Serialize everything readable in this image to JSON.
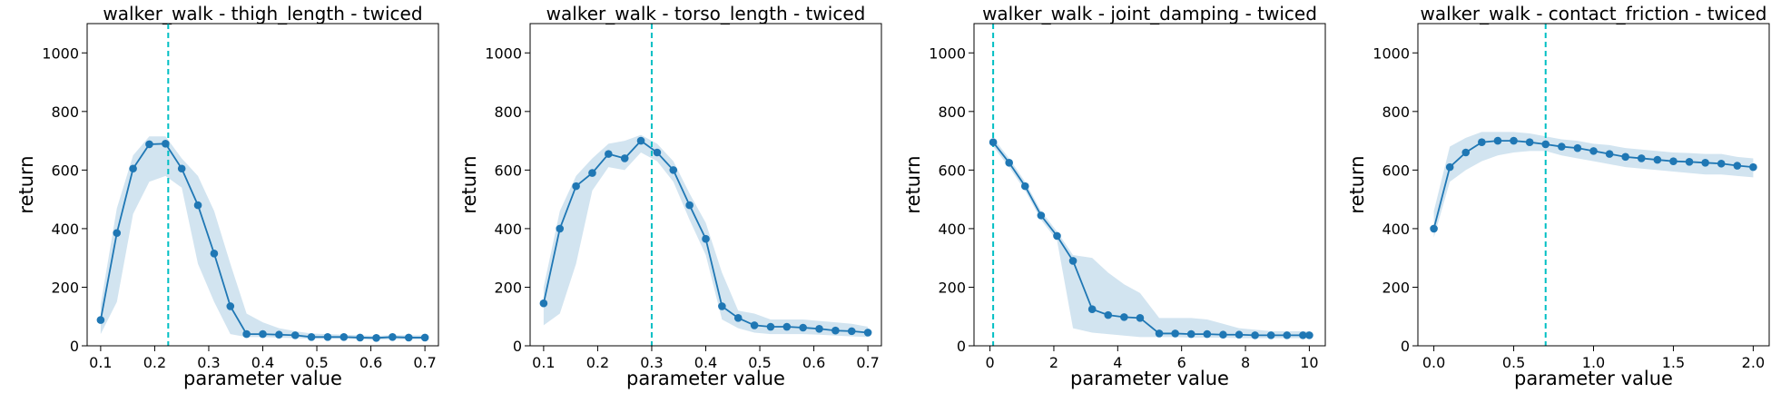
{
  "colors": {
    "line": "#1f77b4",
    "band": "#1f77b4",
    "marker_line": "#00bfc4",
    "axis": "#000000"
  },
  "chart_data": [
    {
      "type": "line",
      "title": "walker_walk - thigh_length - twiced",
      "xlabel": "parameter value",
      "ylabel": "return",
      "xlim": [
        0.075,
        0.725
      ],
      "ylim": [
        0,
        1100
      ],
      "xticks": [
        0.1,
        0.2,
        0.3,
        0.4,
        0.5,
        0.6,
        0.7
      ],
      "xtick_labels": [
        "0.1",
        "0.2",
        "0.3",
        "0.4",
        "0.5",
        "0.6",
        "0.7"
      ],
      "yticks": [
        0,
        200,
        400,
        600,
        800,
        1000
      ],
      "ytick_labels": [
        "0",
        "200",
        "400",
        "600",
        "800",
        "1000"
      ],
      "marker_x": 0.225,
      "x": [
        0.1,
        0.13,
        0.16,
        0.19,
        0.22,
        0.25,
        0.28,
        0.31,
        0.34,
        0.37,
        0.4,
        0.43,
        0.46,
        0.49,
        0.52,
        0.55,
        0.58,
        0.61,
        0.64,
        0.67,
        0.7
      ],
      "y": [
        88,
        385,
        605,
        688,
        690,
        605,
        480,
        315,
        135,
        40,
        40,
        38,
        36,
        30,
        30,
        30,
        28,
        27,
        30,
        28,
        28
      ],
      "lower": [
        40,
        150,
        450,
        560,
        580,
        540,
        280,
        150,
        40,
        30,
        30,
        28,
        26,
        24,
        24,
        24,
        22,
        20,
        22,
        22,
        22
      ],
      "upper": [
        140,
        470,
        650,
        715,
        715,
        640,
        580,
        460,
        280,
        110,
        80,
        60,
        50,
        42,
        40,
        38,
        36,
        34,
        36,
        36,
        36
      ]
    },
    {
      "type": "line",
      "title": "walker_walk - torso_length - twiced",
      "xlabel": "parameter value",
      "ylabel": "return",
      "xlim": [
        0.075,
        0.725
      ],
      "ylim": [
        0,
        1100
      ],
      "xticks": [
        0.1,
        0.2,
        0.3,
        0.4,
        0.5,
        0.6,
        0.7
      ],
      "xtick_labels": [
        "0.1",
        "0.2",
        "0.3",
        "0.4",
        "0.5",
        "0.6",
        "0.7"
      ],
      "yticks": [
        0,
        200,
        400,
        600,
        800,
        1000
      ],
      "ytick_labels": [
        "0",
        "200",
        "400",
        "600",
        "800",
        "1000"
      ],
      "marker_x": 0.3,
      "x": [
        0.1,
        0.13,
        0.16,
        0.19,
        0.22,
        0.25,
        0.28,
        0.31,
        0.34,
        0.37,
        0.4,
        0.43,
        0.46,
        0.49,
        0.52,
        0.55,
        0.58,
        0.61,
        0.64,
        0.67,
        0.7
      ],
      "y": [
        145,
        400,
        545,
        590,
        655,
        640,
        700,
        660,
        600,
        480,
        365,
        135,
        95,
        70,
        65,
        65,
        62,
        58,
        52,
        50,
        45
      ],
      "lower": [
        70,
        110,
        280,
        530,
        610,
        600,
        660,
        630,
        560,
        430,
        310,
        90,
        60,
        45,
        40,
        40,
        40,
        38,
        35,
        32,
        30
      ],
      "upper": [
        200,
        460,
        580,
        640,
        690,
        700,
        720,
        690,
        630,
        520,
        420,
        250,
        120,
        110,
        90,
        90,
        90,
        85,
        80,
        75,
        65
      ]
    },
    {
      "type": "line",
      "title": "walker_walk - joint_damping - twiced",
      "xlabel": "parameter value",
      "ylabel": "return",
      "xlim": [
        -0.5,
        10.5
      ],
      "ylim": [
        0,
        1100
      ],
      "xticks": [
        0,
        2,
        4,
        6,
        8,
        10
      ],
      "xtick_labels": [
        "0",
        "2",
        "4",
        "6",
        "8",
        "10"
      ],
      "yticks": [
        0,
        200,
        400,
        600,
        800,
        1000
      ],
      "ytick_labels": [
        "0",
        "200",
        "400",
        "600",
        "800",
        "1000"
      ],
      "marker_x": 0.1,
      "x": [
        0.1,
        0.6,
        1.1,
        1.6,
        2.1,
        2.6,
        3.2,
        3.7,
        4.2,
        4.7,
        5.3,
        5.8,
        6.3,
        6.8,
        7.3,
        7.8,
        8.3,
        8.8,
        9.3,
        9.8,
        10.0
      ],
      "y": [
        695,
        625,
        545,
        445,
        375,
        290,
        125,
        105,
        98,
        95,
        42,
        42,
        40,
        40,
        38,
        38,
        36,
        36,
        36,
        36,
        36
      ],
      "lower": [
        680,
        610,
        530,
        430,
        360,
        60,
        45,
        40,
        35,
        30,
        30,
        30,
        28,
        28,
        28,
        26,
        26,
        26,
        26,
        26,
        26
      ],
      "upper": [
        710,
        640,
        560,
        460,
        390,
        310,
        300,
        250,
        210,
        180,
        95,
        95,
        95,
        90,
        75,
        60,
        55,
        50,
        50,
        50,
        50
      ]
    },
    {
      "type": "line",
      "title": "walker_walk - contact_friction - twiced",
      "xlabel": "parameter value",
      "ylabel": "return",
      "xlim": [
        -0.1,
        2.1
      ],
      "ylim": [
        0,
        1100
      ],
      "xticks": [
        0.0,
        0.5,
        1.0,
        1.5,
        2.0
      ],
      "xtick_labels": [
        "0.0",
        "0.5",
        "1.0",
        "1.5",
        "2.0"
      ],
      "yticks": [
        0,
        200,
        400,
        600,
        800,
        1000
      ],
      "ytick_labels": [
        "0",
        "200",
        "400",
        "600",
        "800",
        "1000"
      ],
      "marker_x": 0.7,
      "x": [
        0.0,
        0.1,
        0.2,
        0.3,
        0.4,
        0.5,
        0.6,
        0.7,
        0.8,
        0.9,
        1.0,
        1.1,
        1.2,
        1.3,
        1.4,
        1.5,
        1.6,
        1.7,
        1.8,
        1.9,
        2.0
      ],
      "y": [
        400,
        610,
        660,
        695,
        700,
        700,
        695,
        688,
        680,
        675,
        665,
        655,
        645,
        640,
        635,
        630,
        628,
        625,
        622,
        615,
        610
      ],
      "lower": [
        370,
        560,
        600,
        630,
        650,
        660,
        665,
        665,
        650,
        640,
        630,
        620,
        610,
        605,
        600,
        595,
        590,
        585,
        585,
        580,
        575
      ],
      "upper": [
        460,
        680,
        710,
        730,
        730,
        730,
        725,
        715,
        705,
        700,
        690,
        685,
        675,
        670,
        665,
        660,
        658,
        655,
        655,
        645,
        640
      ]
    }
  ]
}
